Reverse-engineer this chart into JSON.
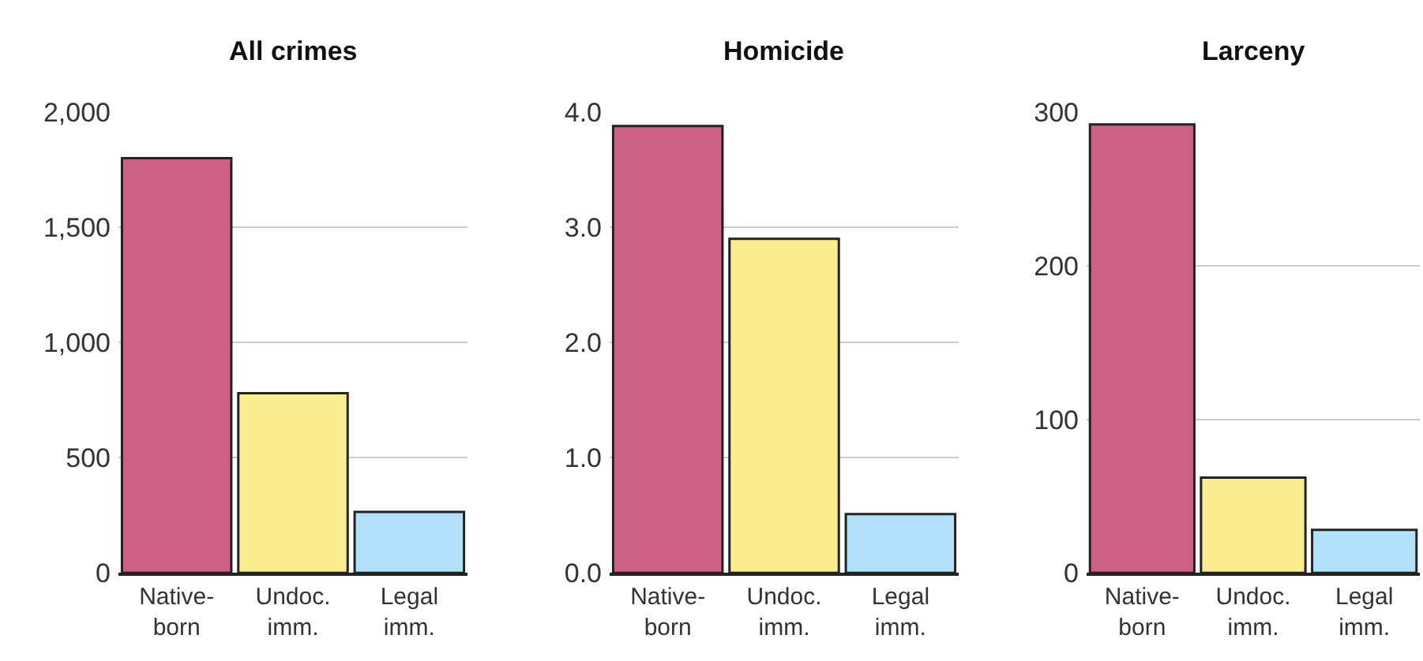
{
  "chart_data": [
    {
      "type": "bar",
      "title": "All crimes",
      "categories": [
        "Native-\nborn",
        "Undoc.\nimm.",
        "Legal\nimm."
      ],
      "values": [
        1800,
        780,
        265
      ],
      "colors": [
        "#cc6188",
        "#fbec8f",
        "#b1e0fb"
      ],
      "ylim": [
        0,
        2000
      ],
      "yticks": [
        0,
        500,
        {
          "value": 1000,
          "label": "1,000"
        },
        {
          "value": 1500,
          "label": "1,500"
        },
        {
          "value": 2000,
          "label": "2,000"
        }
      ],
      "grid": "y"
    },
    {
      "type": "bar",
      "title": "Homicide",
      "categories": [
        "Native-\nborn",
        "Undoc.\nimm.",
        "Legal\nimm."
      ],
      "values": [
        3.88,
        2.9,
        0.51
      ],
      "colors": [
        "#cc6188",
        "#fbec8f",
        "#b1e0fb"
      ],
      "ylim": [
        0,
        4.0
      ],
      "yticks": [
        {
          "value": 0,
          "label": "0.0"
        },
        {
          "value": 1,
          "label": "1.0"
        },
        {
          "value": 2,
          "label": "2.0"
        },
        {
          "value": 3,
          "label": "3.0"
        },
        {
          "value": 4,
          "label": "4.0"
        }
      ],
      "grid": "y"
    },
    {
      "type": "bar",
      "title": "Larceny",
      "categories": [
        "Native-\nborn",
        "Undoc.\nimm.",
        "Legal\nimm."
      ],
      "values": [
        292,
        62,
        28
      ],
      "colors": [
        "#cc6188",
        "#fbec8f",
        "#b1e0fb"
      ],
      "ylim": [
        0,
        300
      ],
      "yticks": [
        0,
        100,
        200,
        300
      ],
      "grid": "y"
    }
  ]
}
